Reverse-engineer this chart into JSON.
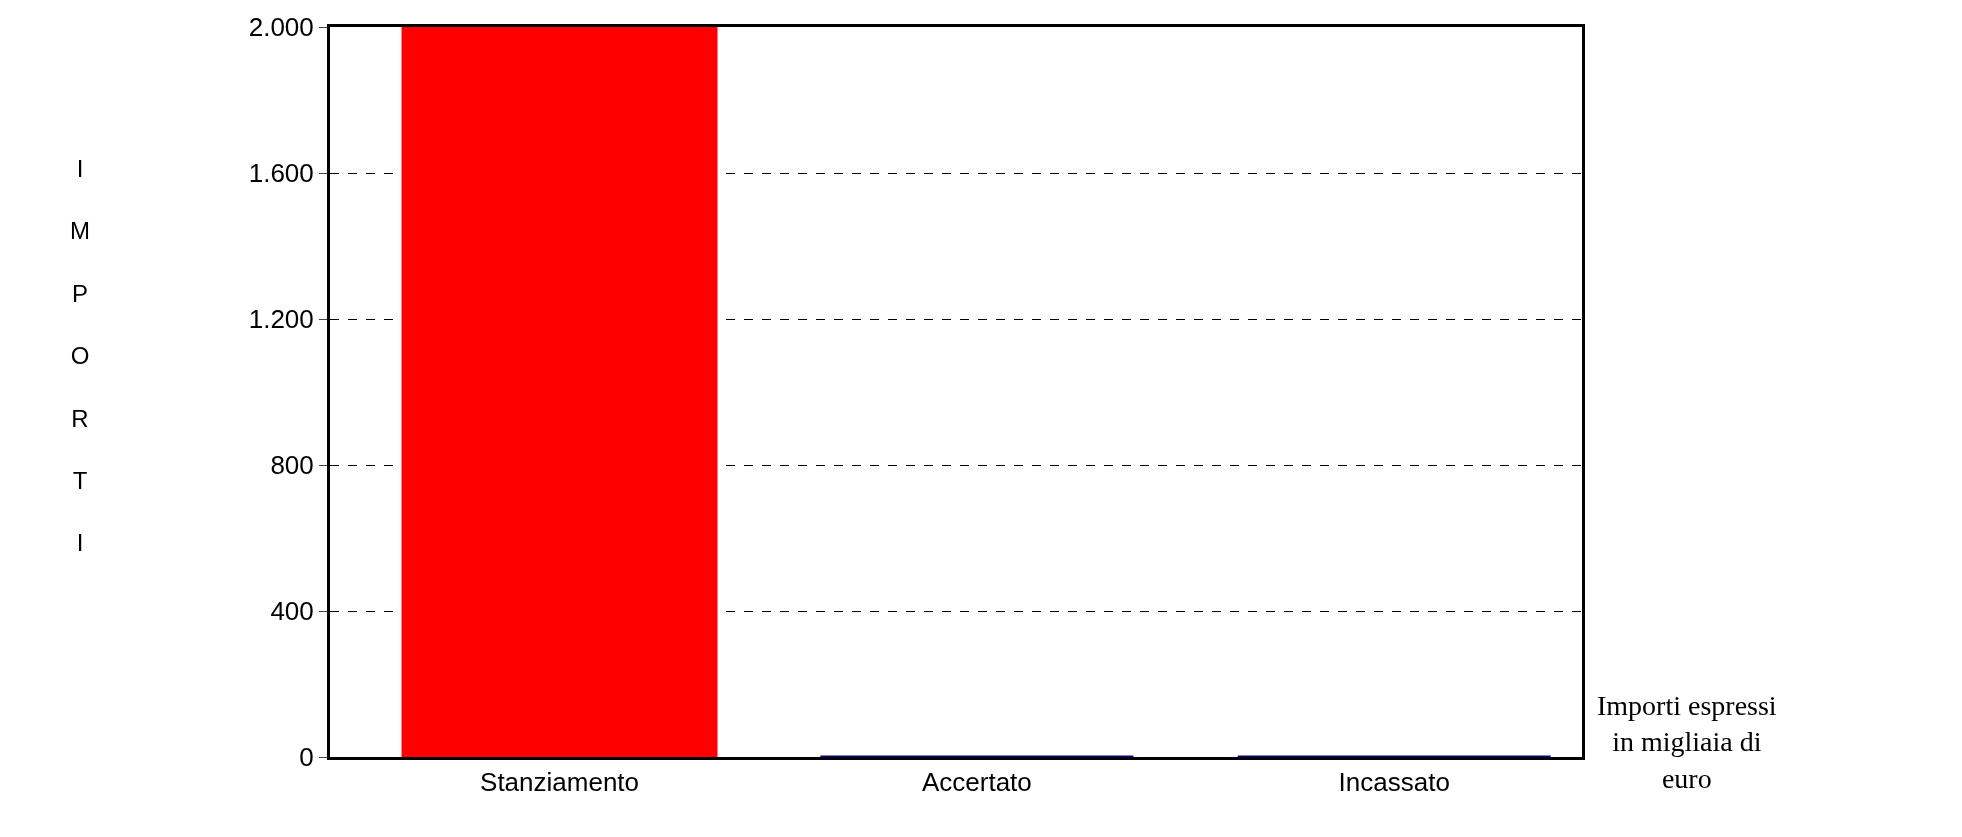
{
  "chart_data": {
    "type": "bar",
    "ylabel": "IMPORTI",
    "categories": [
      "Stanziamento",
      "Accertato",
      "Incassato"
    ],
    "values": [
      2000,
      0,
      0
    ],
    "colors": [
      "#ff0000",
      "#000080",
      "#000080"
    ],
    "ylim": [
      0,
      2000
    ],
    "yticks": [
      0,
      400,
      800,
      {
        "value": 1200,
        "label": "1.200"
      },
      {
        "value": 1600,
        "label": "1.600"
      },
      {
        "value": 2000,
        "label": "2.000"
      }
    ],
    "grid": "y",
    "annotations": [
      "Importi espressi in migliaia di euro"
    ]
  }
}
